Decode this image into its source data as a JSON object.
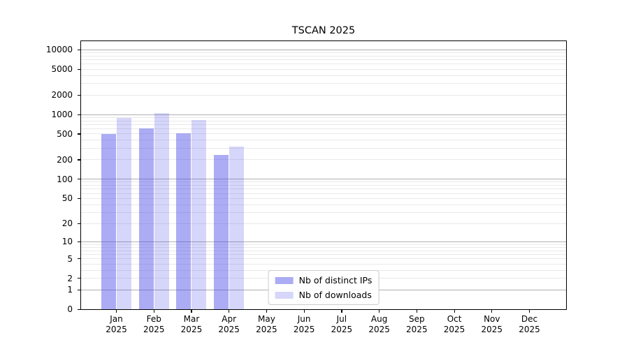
{
  "figure": {
    "background": "#ffffff",
    "border_color": "#000000"
  },
  "chart_data": {
    "type": "bar",
    "title": "TSCAN 2025",
    "x_months": [
      "Jan",
      "Feb",
      "Mar",
      "Apr",
      "May",
      "Jun",
      "Jul",
      "Aug",
      "Sep",
      "Oct",
      "Nov",
      "Dec"
    ],
    "x_year": "2025",
    "series": [
      {
        "name": "Nb of distinct IPs",
        "color": "rgba(70,70,233,0.45)",
        "values": [
          500,
          610,
          515,
          235,
          0,
          0,
          0,
          0,
          0,
          0,
          0,
          0
        ]
      },
      {
        "name": "Nb of downloads",
        "color": "rgba(70,70,233,0.22)",
        "values": [
          880,
          1060,
          825,
          320,
          0,
          0,
          0,
          0,
          0,
          0,
          0,
          0
        ]
      }
    ],
    "y_ticks": [
      0,
      1,
      2,
      5,
      10,
      20,
      50,
      100,
      200,
      500,
      1000,
      2000,
      5000,
      10000
    ],
    "y_scale": "log1p",
    "ylim": [
      0,
      13500
    ],
    "grid": {
      "major_color": "#b0b0b0",
      "minor_color": "#e9e9e9",
      "major_values": [
        1,
        10,
        100,
        1000,
        10000
      ]
    },
    "legend_position": "lower center"
  }
}
